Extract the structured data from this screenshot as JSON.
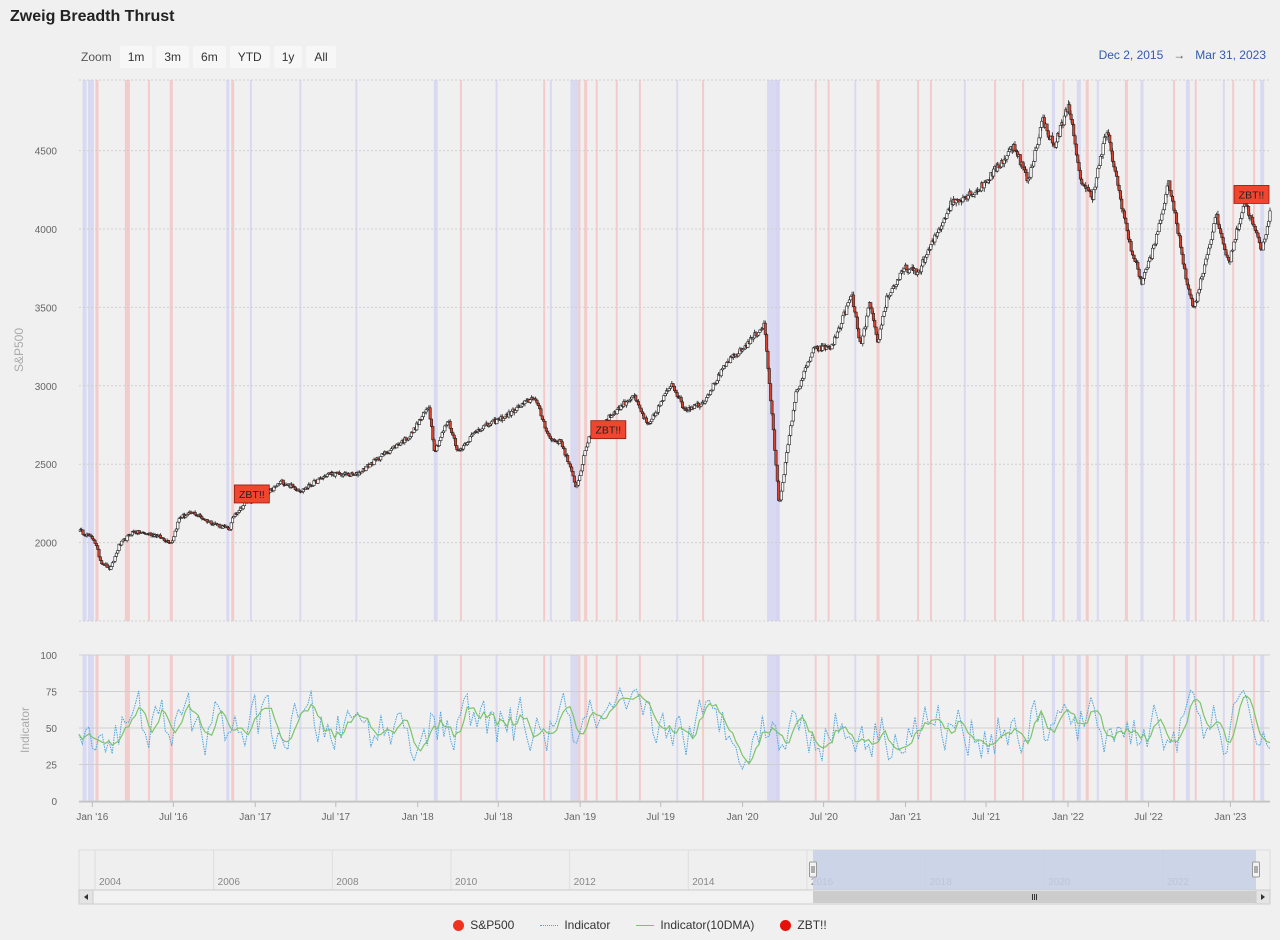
{
  "title": "Zweig Breadth Thrust",
  "zoom": {
    "label": "Zoom",
    "buttons": [
      "1m",
      "3m",
      "6m",
      "YTD",
      "1y",
      "All"
    ]
  },
  "range": {
    "from": "Dec 2, 2015",
    "arrow": "→",
    "to": "Mar 31, 2023"
  },
  "colors": {
    "sp500": "#e8281c",
    "indicator": "#4aa3df",
    "indicator_ma": "#7cc46a",
    "zbt": "#f0452f",
    "band_red": "#f5c2c2",
    "band_blue": "#d3d3f3",
    "navigator_fill": "#c6d0e6"
  },
  "legend": [
    {
      "label": "S&P500",
      "type": "dot",
      "color": "#f0321e"
    },
    {
      "label": "Indicator",
      "type": "dotted",
      "color": "#4aa3df"
    },
    {
      "label": "Indicator(10DMA)",
      "type": "line",
      "color": "#7cc46a"
    },
    {
      "label": "ZBT!!",
      "type": "dot",
      "color": "#e8100a"
    }
  ],
  "chart_data": [
    {
      "type": "line",
      "ylabel": "S&P500",
      "ylim": [
        1500,
        4950
      ],
      "yticks": [
        2000,
        2500,
        3000,
        3500,
        4000,
        4500
      ],
      "xticks": [
        "Jan '16",
        "Jul '16",
        "Jan '17",
        "Jul '17",
        "Jan '18",
        "Jul '18",
        "Jan '19",
        "Jul '19",
        "Jan '20",
        "Jul '20",
        "Jan '21",
        "Jul '21",
        "Jan '22",
        "Jul '22",
        "Jan '23"
      ],
      "xrange": [
        "2015-12-02",
        "2023-03-31"
      ],
      "series": [
        {
          "name": "S&P500",
          "points": [
            [
              "2015-12-02",
              2080
            ],
            [
              "2016-01-05",
              2020
            ],
            [
              "2016-01-20",
              1880
            ],
            [
              "2016-02-11",
              1830
            ],
            [
              "2016-03-01",
              1980
            ],
            [
              "2016-04-01",
              2070
            ],
            [
              "2016-05-20",
              2050
            ],
            [
              "2016-06-27",
              2000
            ],
            [
              "2016-07-15",
              2160
            ],
            [
              "2016-08-15",
              2190
            ],
            [
              "2016-09-15",
              2140
            ],
            [
              "2016-11-04",
              2085
            ],
            [
              "2016-11-15",
              2180
            ],
            [
              "2016-12-15",
              2265
            ],
            [
              "2017-01-15",
              2275
            ],
            [
              "2017-03-01",
              2390
            ],
            [
              "2017-04-15",
              2330
            ],
            [
              "2017-06-15",
              2440
            ],
            [
              "2017-08-15",
              2430
            ],
            [
              "2017-10-15",
              2560
            ],
            [
              "2017-12-15",
              2680
            ],
            [
              "2018-01-26",
              2870
            ],
            [
              "2018-02-08",
              2580
            ],
            [
              "2018-03-10",
              2780
            ],
            [
              "2018-04-02",
              2580
            ],
            [
              "2018-05-15",
              2720
            ],
            [
              "2018-07-15",
              2800
            ],
            [
              "2018-09-20",
              2930
            ],
            [
              "2018-10-25",
              2660
            ],
            [
              "2018-11-20",
              2640
            ],
            [
              "2018-12-24",
              2350
            ],
            [
              "2019-01-20",
              2670
            ],
            [
              "2019-03-15",
              2820
            ],
            [
              "2019-04-30",
              2940
            ],
            [
              "2019-06-03",
              2740
            ],
            [
              "2019-07-26",
              3020
            ],
            [
              "2019-08-23",
              2850
            ],
            [
              "2019-10-03",
              2890
            ],
            [
              "2019-11-28",
              3150
            ],
            [
              "2019-12-31",
              3230
            ],
            [
              "2020-02-19",
              3390
            ],
            [
              "2020-03-09",
              2740
            ],
            [
              "2020-03-23",
              2240
            ],
            [
              "2020-04-29",
              2940
            ],
            [
              "2020-06-08",
              3230
            ],
            [
              "2020-07-20",
              3250
            ],
            [
              "2020-09-02",
              3580
            ],
            [
              "2020-09-23",
              3240
            ],
            [
              "2020-10-12",
              3530
            ],
            [
              "2020-10-30",
              3270
            ],
            [
              "2020-11-20",
              3560
            ],
            [
              "2020-12-31",
              3750
            ],
            [
              "2021-01-29",
              3720
            ],
            [
              "2021-03-01",
              3900
            ],
            [
              "2021-04-15",
              4170
            ],
            [
              "2021-06-15",
              4250
            ],
            [
              "2021-08-15",
              4460
            ],
            [
              "2021-09-02",
              4540
            ],
            [
              "2021-10-04",
              4300
            ],
            [
              "2021-11-05",
              4700
            ],
            [
              "2021-12-01",
              4520
            ],
            [
              "2022-01-03",
              4800
            ],
            [
              "2022-01-27",
              4330
            ],
            [
              "2022-02-24",
              4200
            ],
            [
              "2022-03-29",
              4630
            ],
            [
              "2022-05-20",
              3900
            ],
            [
              "2022-06-16",
              3660
            ],
            [
              "2022-07-15",
              3900
            ],
            [
              "2022-08-16",
              4300
            ],
            [
              "2022-09-30",
              3590
            ],
            [
              "2022-10-12",
              3500
            ],
            [
              "2022-11-30",
              4080
            ],
            [
              "2022-12-28",
              3780
            ],
            [
              "2023-02-02",
              4180
            ],
            [
              "2023-03-13",
              3860
            ],
            [
              "2023-03-31",
              4110
            ]
          ]
        }
      ],
      "zbt_signals": [
        {
          "date": "2016-11-15",
          "value": 2240,
          "label": "ZBT!!"
        },
        {
          "date": "2019-01-25",
          "value": 2650,
          "label": "ZBT!!"
        },
        {
          "date": "2023-03-20",
          "value": 4150,
          "label": "ZBT!!"
        }
      ]
    },
    {
      "type": "line",
      "ylabel": "Indicator",
      "ylim": [
        0,
        100
      ],
      "yticks": [
        0,
        25,
        50,
        75,
        100
      ],
      "series": [
        {
          "name": "Indicator"
        },
        {
          "name": "Indicator(10DMA)"
        }
      ]
    }
  ],
  "navigator": {
    "years": [
      "2004",
      "2006",
      "2008",
      "2010",
      "2012",
      "2014",
      "2016",
      "2018",
      "2020",
      "2022"
    ]
  }
}
